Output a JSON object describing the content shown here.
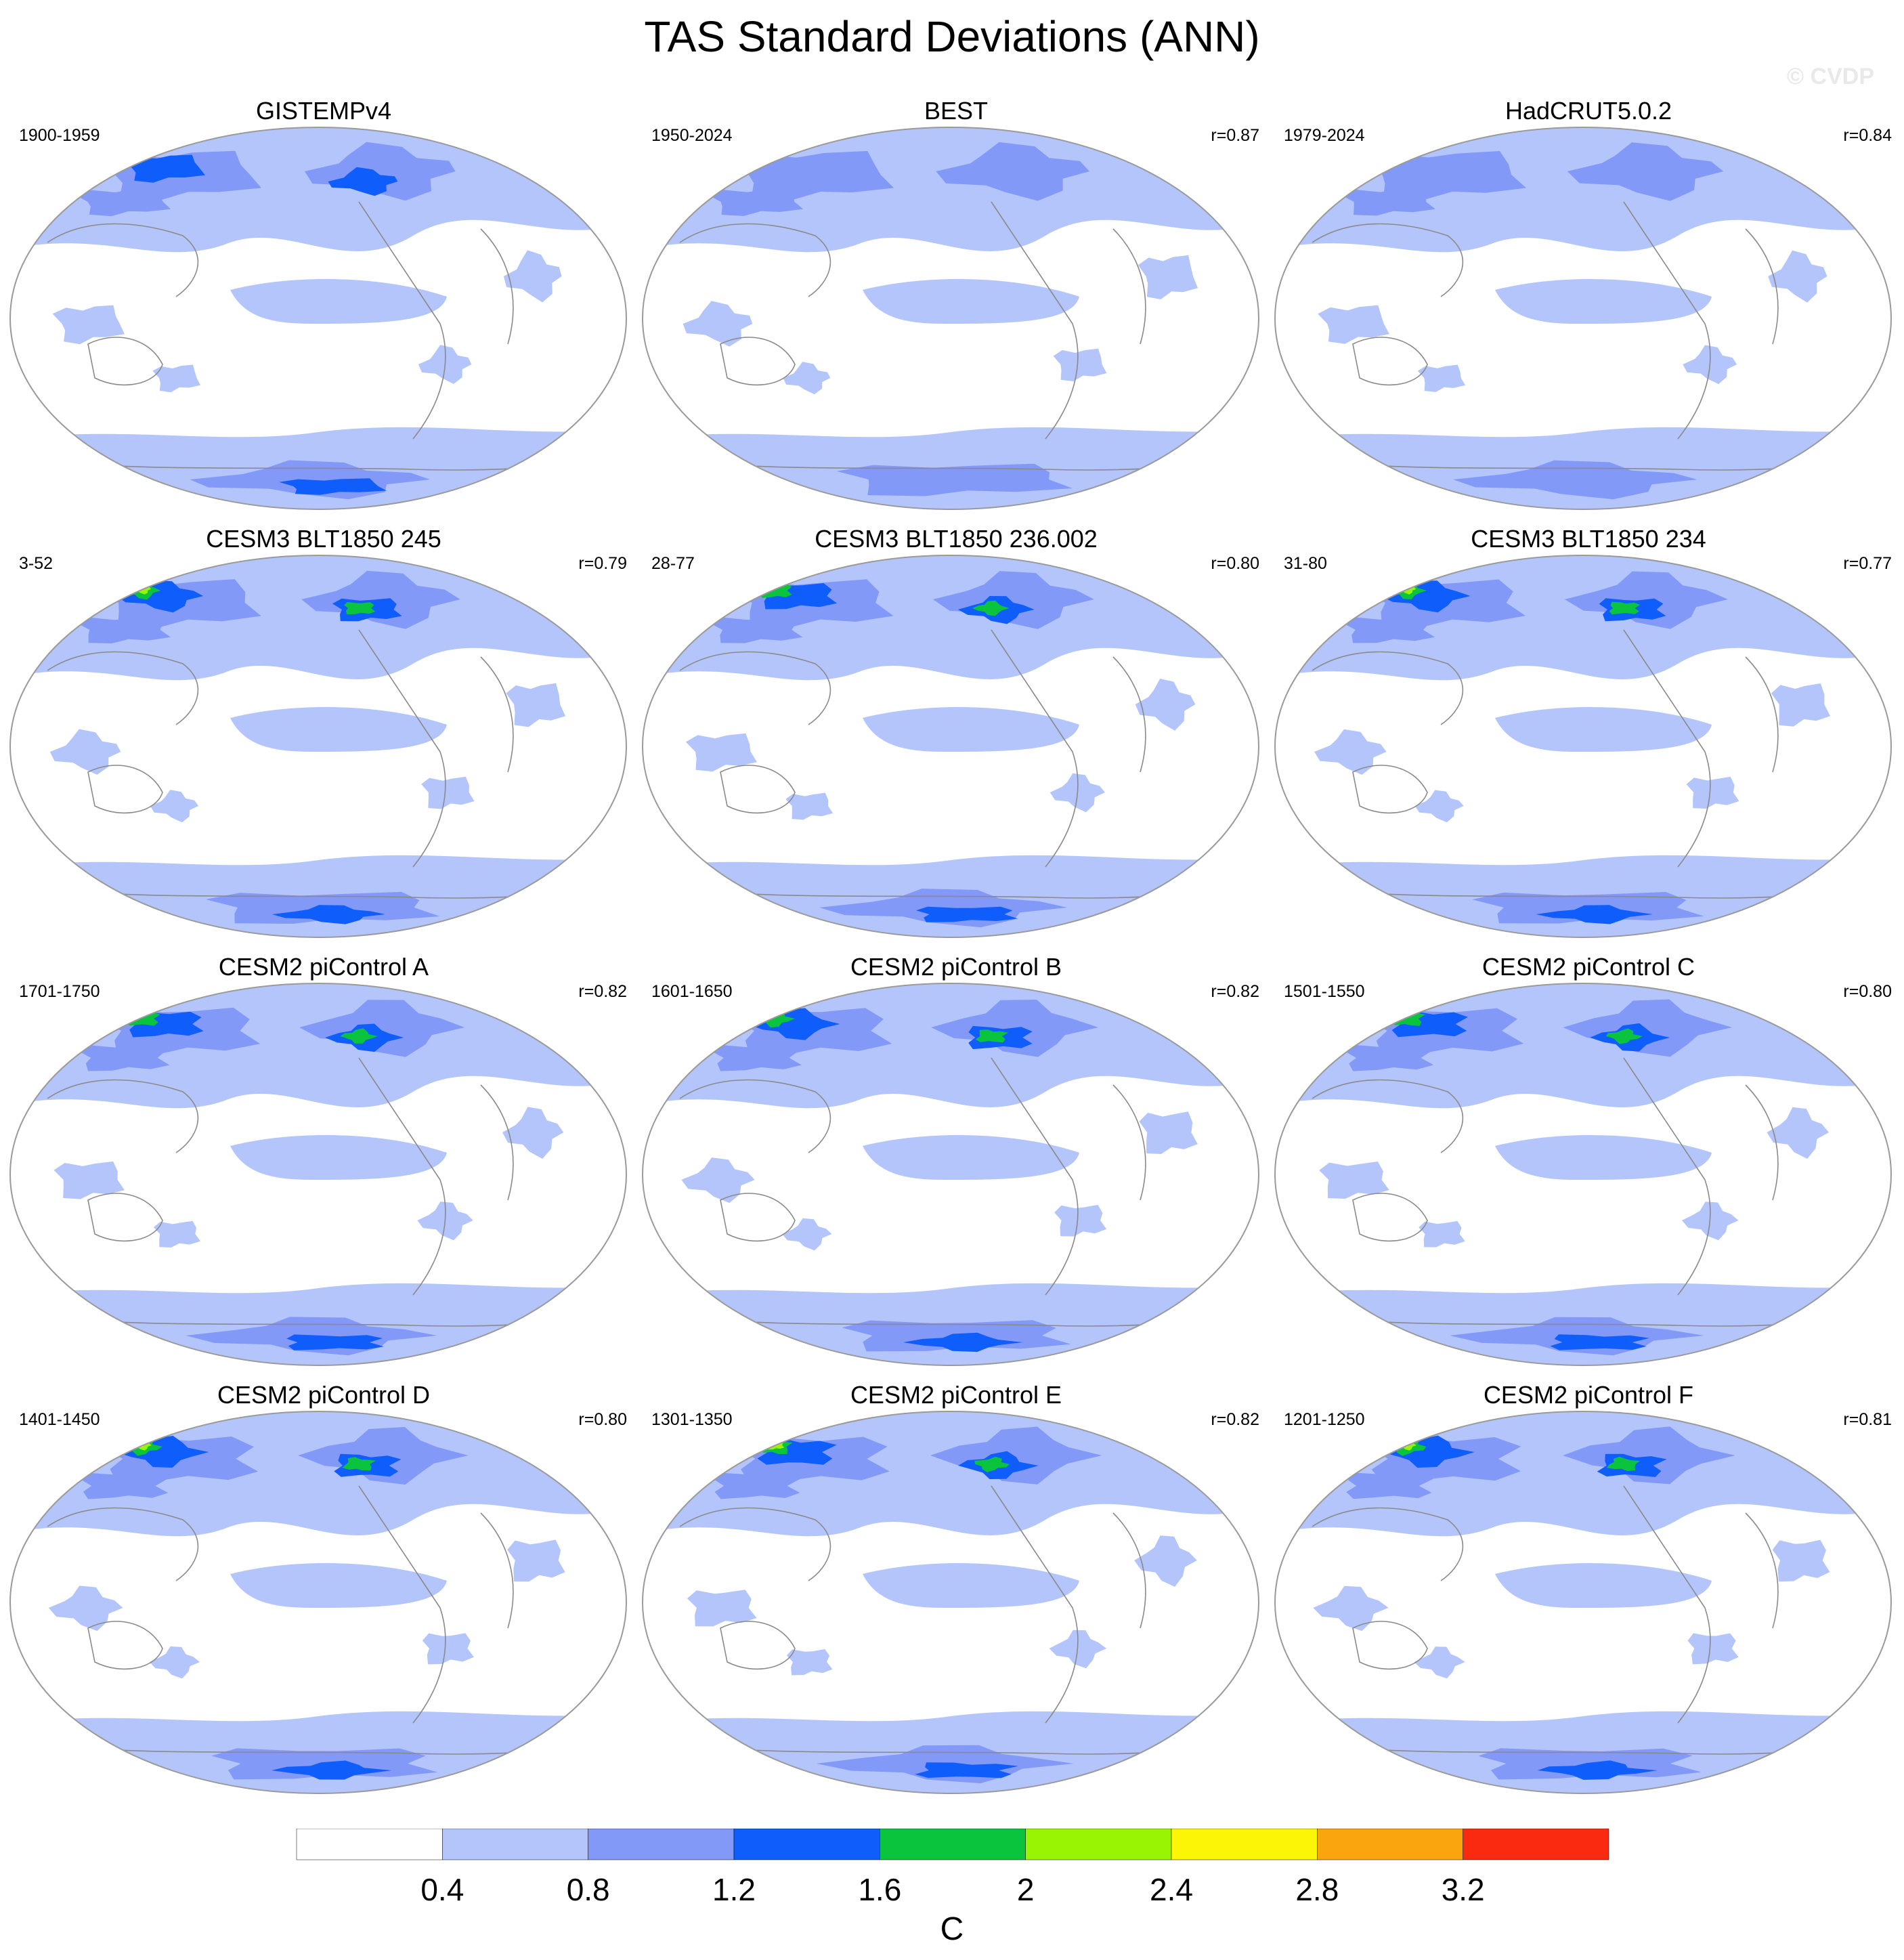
{
  "title": "TAS Standard Deviations (ANN)",
  "watermark": "© CVDP",
  "units": "C",
  "colorbar": {
    "levels": [
      0.4,
      0.8,
      1.2,
      1.6,
      2,
      2.4,
      2.8,
      3.2
    ],
    "labels": [
      "0.4",
      "0.8",
      "1.2",
      "1.6",
      "2",
      "2.4",
      "2.8",
      "3.2"
    ],
    "colors": [
      "#ffffff",
      "#b4c5fb",
      "#8299f7",
      "#0f5dfb",
      "#0ac43d",
      "#99f404",
      "#fbf506",
      "#fba50e",
      "#fa2a10"
    ]
  },
  "panels": [
    {
      "title": "GISTEMPv4",
      "years": "1900-1959",
      "corr": "",
      "max_level": 3
    },
    {
      "title": "BEST",
      "years": "1950-2024",
      "corr": "r=0.87",
      "max_level": 2
    },
    {
      "title": "HadCRUT5.0.2",
      "years": "1979-2024",
      "corr": "r=0.84",
      "max_level": 2
    },
    {
      "title": "CESM3 BLT1850 245",
      "years": "3-52",
      "corr": "r=0.79",
      "max_level": 5
    },
    {
      "title": "CESM3 BLT1850 236.002",
      "years": "28-77",
      "corr": "r=0.80",
      "max_level": 4
    },
    {
      "title": "CESM3 BLT1850 234",
      "years": "31-80",
      "corr": "r=0.77",
      "max_level": 5
    },
    {
      "title": "CESM2 piControl A",
      "years": "1701-1750",
      "corr": "r=0.82",
      "max_level": 4
    },
    {
      "title": "CESM2 piControl B",
      "years": "1601-1650",
      "corr": "r=0.82",
      "max_level": 4
    },
    {
      "title": "CESM2 piControl C",
      "years": "1501-1550",
      "corr": "r=0.80",
      "max_level": 4
    },
    {
      "title": "CESM2 piControl D",
      "years": "1401-1450",
      "corr": "r=0.80",
      "max_level": 6
    },
    {
      "title": "CESM2 piControl E",
      "years": "1301-1350",
      "corr": "r=0.82",
      "max_level": 5
    },
    {
      "title": "CESM2 piControl F",
      "years": "1201-1250",
      "corr": "r=0.81",
      "max_level": 6
    }
  ]
}
